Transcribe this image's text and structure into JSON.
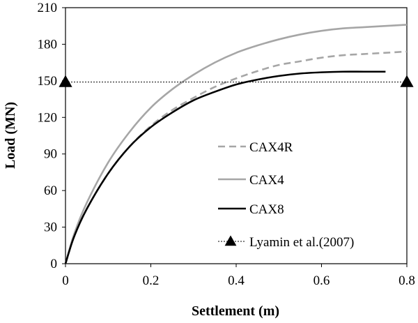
{
  "chart_data": {
    "type": "line",
    "title": "",
    "xlabel": "Settlement (m)",
    "ylabel": "Load (MN)",
    "xlim": [
      0,
      0.8
    ],
    "ylim": [
      0,
      210
    ],
    "x_ticks": [
      0,
      0.2,
      0.4,
      0.6,
      0.8
    ],
    "x_tick_labels": [
      "0",
      "0.2",
      "0.4",
      "0.6",
      "0.8"
    ],
    "y_ticks": [
      0,
      30,
      60,
      90,
      120,
      150,
      180,
      210
    ],
    "y_tick_labels": [
      "0",
      "30",
      "60",
      "90",
      "120",
      "150",
      "180",
      "210"
    ],
    "grid": false,
    "legend_position": "lower-right",
    "series": [
      {
        "name": "CAX4R",
        "style": "dashed",
        "color": "#a6a6a6",
        "x": [
          0,
          0.02,
          0.05,
          0.1,
          0.15,
          0.2,
          0.25,
          0.3,
          0.35,
          0.4,
          0.45,
          0.5,
          0.55,
          0.6,
          0.65,
          0.7,
          0.75,
          0.8
        ],
        "y": [
          0,
          22,
          45,
          74,
          96,
          113,
          126,
          136,
          145,
          152,
          158,
          163,
          166,
          169,
          171,
          172,
          173,
          174
        ]
      },
      {
        "name": "CAX4",
        "style": "solid",
        "color": "#a6a6a6",
        "x": [
          0,
          0.02,
          0.05,
          0.1,
          0.15,
          0.2,
          0.25,
          0.3,
          0.35,
          0.4,
          0.45,
          0.5,
          0.55,
          0.6,
          0.65,
          0.7,
          0.75,
          0.8
        ],
        "y": [
          0,
          24,
          50,
          83,
          108,
          128,
          143,
          155,
          165,
          173,
          179,
          184,
          188,
          191,
          193,
          194,
          195,
          196
        ]
      },
      {
        "name": "CAX8",
        "style": "solid",
        "color": "#000000",
        "x": [
          0,
          0.02,
          0.05,
          0.1,
          0.15,
          0.2,
          0.25,
          0.3,
          0.35,
          0.4,
          0.45,
          0.5,
          0.55,
          0.6,
          0.65,
          0.7,
          0.75
        ],
        "y": [
          0,
          22,
          45,
          74,
          96,
          112,
          124,
          134,
          141,
          147,
          151,
          154,
          156,
          157,
          157.5,
          157.5,
          157.5
        ]
      },
      {
        "name": "Lyamin et al.(2007)",
        "style": "dotted",
        "color": "#000000",
        "marker": "triangle",
        "x": [
          0,
          0.8
        ],
        "y": [
          149,
          149
        ]
      }
    ]
  }
}
